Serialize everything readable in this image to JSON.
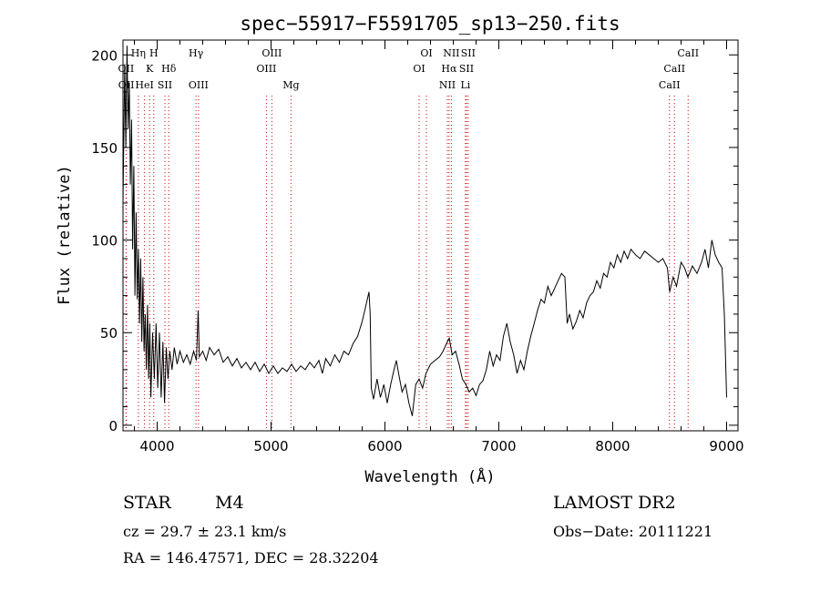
{
  "chart_data": {
    "type": "line",
    "title": "spec−55917−F5591705_sp13−250.fits",
    "xlabel": "Wavelength (Å)",
    "ylabel": "Flux (relative)",
    "xlim": [
      3700,
      9100
    ],
    "ylim": [
      -3,
      208
    ],
    "x_ticks": [
      4000,
      5000,
      6000,
      7000,
      8000,
      9000
    ],
    "y_ticks": [
      0,
      50,
      100,
      150,
      200
    ],
    "grid": false,
    "line_color": "#000000",
    "marker_color": "#cc0000",
    "series": [
      {
        "points": [
          [
            3700,
            120
          ],
          [
            3715,
            195
          ],
          [
            3725,
            150
          ],
          [
            3735,
            205
          ],
          [
            3745,
            160
          ],
          [
            3755,
            185
          ],
          [
            3765,
            130
          ],
          [
            3775,
            165
          ],
          [
            3785,
            95
          ],
          [
            3795,
            140
          ],
          [
            3805,
            70
          ],
          [
            3815,
            115
          ],
          [
            3825,
            68
          ],
          [
            3835,
            95
          ],
          [
            3845,
            55
          ],
          [
            3855,
            90
          ],
          [
            3865,
            45
          ],
          [
            3875,
            80
          ],
          [
            3885,
            40
          ],
          [
            3895,
            60
          ],
          [
            3905,
            30
          ],
          [
            3915,
            65
          ],
          [
            3925,
            25
          ],
          [
            3935,
            55
          ],
          [
            3945,
            15
          ],
          [
            3960,
            50
          ],
          [
            3975,
            25
          ],
          [
            3990,
            55
          ],
          [
            4005,
            20
          ],
          [
            4020,
            50
          ],
          [
            4035,
            15
          ],
          [
            4050,
            45
          ],
          [
            4065,
            12
          ],
          [
            4080,
            42
          ],
          [
            4095,
            25
          ],
          [
            4110,
            40
          ],
          [
            4130,
            30
          ],
          [
            4150,
            42
          ],
          [
            4175,
            33
          ],
          [
            4200,
            40
          ],
          [
            4230,
            34
          ],
          [
            4260,
            38
          ],
          [
            4290,
            33
          ],
          [
            4320,
            40
          ],
          [
            4345,
            35
          ],
          [
            4360,
            62
          ],
          [
            4370,
            37
          ],
          [
            4400,
            40
          ],
          [
            4430,
            35
          ],
          [
            4460,
            42
          ],
          [
            4500,
            38
          ],
          [
            4540,
            41
          ],
          [
            4580,
            34
          ],
          [
            4620,
            37
          ],
          [
            4660,
            32
          ],
          [
            4700,
            36
          ],
          [
            4740,
            31
          ],
          [
            4780,
            34
          ],
          [
            4820,
            30
          ],
          [
            4860,
            34
          ],
          [
            4900,
            29
          ],
          [
            4940,
            33
          ],
          [
            4980,
            28
          ],
          [
            5020,
            32
          ],
          [
            5060,
            28
          ],
          [
            5100,
            31
          ],
          [
            5140,
            29
          ],
          [
            5180,
            33
          ],
          [
            5220,
            29
          ],
          [
            5260,
            32
          ],
          [
            5300,
            30
          ],
          [
            5340,
            34
          ],
          [
            5380,
            31
          ],
          [
            5420,
            35
          ],
          [
            5450,
            28
          ],
          [
            5480,
            36
          ],
          [
            5520,
            32
          ],
          [
            5560,
            38
          ],
          [
            5600,
            34
          ],
          [
            5640,
            40
          ],
          [
            5680,
            38
          ],
          [
            5720,
            44
          ],
          [
            5760,
            48
          ],
          [
            5800,
            56
          ],
          [
            5830,
            64
          ],
          [
            5860,
            72
          ],
          [
            5870,
            60
          ],
          [
            5880,
            20
          ],
          [
            5900,
            14
          ],
          [
            5930,
            25
          ],
          [
            5960,
            15
          ],
          [
            5990,
            22
          ],
          [
            6020,
            12
          ],
          [
            6050,
            22
          ],
          [
            6080,
            30
          ],
          [
            6100,
            35
          ],
          [
            6120,
            28
          ],
          [
            6150,
            18
          ],
          [
            6180,
            22
          ],
          [
            6210,
            12
          ],
          [
            6240,
            5
          ],
          [
            6270,
            22
          ],
          [
            6300,
            25
          ],
          [
            6330,
            20
          ],
          [
            6360,
            28
          ],
          [
            6400,
            33
          ],
          [
            6440,
            35
          ],
          [
            6480,
            37
          ],
          [
            6510,
            40
          ],
          [
            6540,
            44
          ],
          [
            6565,
            47
          ],
          [
            6590,
            38
          ],
          [
            6620,
            40
          ],
          [
            6650,
            33
          ],
          [
            6680,
            25
          ],
          [
            6710,
            22
          ],
          [
            6740,
            18
          ],
          [
            6770,
            20
          ],
          [
            6800,
            16
          ],
          [
            6830,
            22
          ],
          [
            6860,
            24
          ],
          [
            6890,
            30
          ],
          [
            6920,
            40
          ],
          [
            6950,
            32
          ],
          [
            6980,
            38
          ],
          [
            7010,
            35
          ],
          [
            7040,
            48
          ],
          [
            7070,
            55
          ],
          [
            7100,
            45
          ],
          [
            7130,
            38
          ],
          [
            7160,
            28
          ],
          [
            7190,
            35
          ],
          [
            7220,
            30
          ],
          [
            7250,
            40
          ],
          [
            7280,
            48
          ],
          [
            7310,
            55
          ],
          [
            7340,
            62
          ],
          [
            7370,
            68
          ],
          [
            7400,
            66
          ],
          [
            7430,
            75
          ],
          [
            7460,
            70
          ],
          [
            7490,
            74
          ],
          [
            7520,
            78
          ],
          [
            7550,
            82
          ],
          [
            7580,
            80
          ],
          [
            7600,
            55
          ],
          [
            7620,
            60
          ],
          [
            7650,
            52
          ],
          [
            7680,
            56
          ],
          [
            7710,
            62
          ],
          [
            7740,
            58
          ],
          [
            7770,
            66
          ],
          [
            7800,
            70
          ],
          [
            7830,
            72
          ],
          [
            7860,
            78
          ],
          [
            7890,
            74
          ],
          [
            7920,
            82
          ],
          [
            7950,
            80
          ],
          [
            7980,
            88
          ],
          [
            8010,
            85
          ],
          [
            8040,
            92
          ],
          [
            8070,
            88
          ],
          [
            8100,
            94
          ],
          [
            8130,
            90
          ],
          [
            8160,
            95
          ],
          [
            8200,
            92
          ],
          [
            8240,
            90
          ],
          [
            8280,
            94
          ],
          [
            8320,
            92
          ],
          [
            8360,
            90
          ],
          [
            8400,
            88
          ],
          [
            8440,
            90
          ],
          [
            8480,
            85
          ],
          [
            8500,
            72
          ],
          [
            8530,
            80
          ],
          [
            8560,
            75
          ],
          [
            8600,
            88
          ],
          [
            8630,
            85
          ],
          [
            8660,
            80
          ],
          [
            8700,
            86
          ],
          [
            8740,
            82
          ],
          [
            8780,
            88
          ],
          [
            8810,
            95
          ],
          [
            8840,
            85
          ],
          [
            8870,
            100
          ],
          [
            8900,
            92
          ],
          [
            8930,
            88
          ],
          [
            8960,
            85
          ],
          [
            8980,
            60
          ],
          [
            9000,
            15
          ]
        ]
      }
    ],
    "line_markers": [
      {
        "lambda": 3727,
        "labels": [
          "OII"
        ],
        "row": 2
      },
      {
        "lambda": 3729,
        "labels": [
          "OII"
        ],
        "row": 3
      },
      {
        "lambda": 3835,
        "labels": [
          "Hη"
        ],
        "row": 1
      },
      {
        "lambda": 3889,
        "labels": [
          "HeI"
        ],
        "row": 3
      },
      {
        "lambda": 3934,
        "labels": [
          "K"
        ],
        "row": 2
      },
      {
        "lambda": 3970,
        "labels": [
          "H"
        ],
        "row": 1
      },
      {
        "lambda": 4068,
        "labels": [
          "SII"
        ],
        "row": 3
      },
      {
        "lambda": 4102,
        "labels": [
          "Hδ"
        ],
        "row": 2
      },
      {
        "lambda": 4341,
        "labels": [
          "Hγ"
        ],
        "row": 1
      },
      {
        "lambda": 4363,
        "labels": [
          "OIII"
        ],
        "row": 3
      },
      {
        "lambda": 4959,
        "labels": [
          "OIII"
        ],
        "row": 2
      },
      {
        "lambda": 5007,
        "labels": [
          "OIII"
        ],
        "row": 1
      },
      {
        "lambda": 5175,
        "labels": [
          "Mg"
        ],
        "row": 3
      },
      {
        "lambda": 6300,
        "labels": [
          "OI"
        ],
        "row": 2
      },
      {
        "lambda": 6364,
        "labels": [
          "OI"
        ],
        "row": 1
      },
      {
        "lambda": 6548,
        "labels": [
          "NII"
        ],
        "row": 3
      },
      {
        "lambda": 6563,
        "labels": [
          "Hα"
        ],
        "row": 2
      },
      {
        "lambda": 6583,
        "labels": [
          "NII"
        ],
        "row": 1
      },
      {
        "lambda": 6707,
        "labels": [
          "Li"
        ],
        "row": 3
      },
      {
        "lambda": 6716,
        "labels": [
          "SII"
        ],
        "row": 2
      },
      {
        "lambda": 6731,
        "labels": [
          "SII"
        ],
        "row": 1
      },
      {
        "lambda": 8498,
        "labels": [
          "CaII"
        ],
        "row": 3
      },
      {
        "lambda": 8542,
        "labels": [
          "CaII"
        ],
        "row": 2
      },
      {
        "lambda": 8662,
        "labels": [
          "CaII"
        ],
        "row": 1
      }
    ]
  },
  "footer": {
    "class_label": "STAR",
    "subclass_label": "M4",
    "cz_text": "cz = 29.7 ± 23.1 km/s",
    "coords_text": "RA = 146.47571, DEC =  28.32204",
    "survey_label": "LAMOST DR2",
    "obs_date_text": "Obs−Date: 20111221"
  }
}
